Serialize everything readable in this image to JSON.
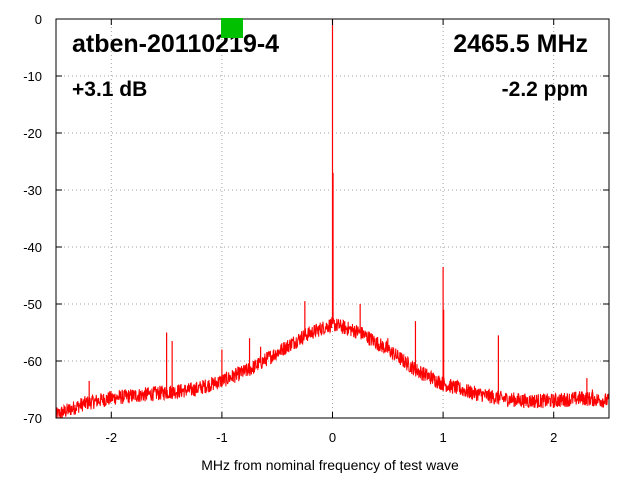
{
  "chart_data": {
    "type": "line",
    "title": "atben-20110219-4",
    "frequency_label": "2465.5 MHz",
    "gain_label": "+3.1 dB",
    "ppm_label": "-2.2 ppm",
    "xlabel": "MHz from nominal frequency of test wave",
    "ylabel": "",
    "xlim": [
      -2.5,
      2.5
    ],
    "ylim": [
      -70,
      0
    ],
    "x_ticks": [
      -2,
      -1,
      0,
      1,
      2
    ],
    "y_ticks": [
      0,
      -10,
      -20,
      -30,
      -40,
      -50,
      -60,
      -70
    ],
    "grid": true,
    "series_color": "#ff0000",
    "indicator_color": "#00c000",
    "noise_floor_envelope": {
      "x": [
        -2.5,
        -2.25,
        -2.0,
        -1.75,
        -1.5,
        -1.25,
        -1.0,
        -0.75,
        -0.5,
        -0.25,
        0.0,
        0.25,
        0.5,
        0.75,
        1.0,
        1.25,
        1.5,
        1.75,
        2.0,
        2.25,
        2.5
      ],
      "y": [
        -69.5,
        -67.5,
        -66.5,
        -66.0,
        -65.5,
        -65.0,
        -63.5,
        -61.5,
        -58.5,
        -55.5,
        -53.5,
        -55.0,
        -58.0,
        -61.5,
        -64.0,
        -65.5,
        -66.5,
        -67.0,
        -67.0,
        -66.5,
        -67.0
      ]
    },
    "spurs": [
      {
        "x": -2.2,
        "y": -63.5
      },
      {
        "x": -1.5,
        "y": -55.0
      },
      {
        "x": -1.45,
        "y": -56.5
      },
      {
        "x": -1.0,
        "y": -58.0
      },
      {
        "x": -0.75,
        "y": -56.0
      },
      {
        "x": -0.65,
        "y": -57.5
      },
      {
        "x": -0.25,
        "y": -49.5
      },
      {
        "x": 0.0,
        "y": 0.0
      },
      {
        "x": 0.005,
        "y": -27.0
      },
      {
        "x": 0.25,
        "y": -50.0
      },
      {
        "x": 0.5,
        "y": -56.0
      },
      {
        "x": 0.75,
        "y": -53.0
      },
      {
        "x": 1.0,
        "y": -43.5
      },
      {
        "x": 1.005,
        "y": -51.0
      },
      {
        "x": 1.5,
        "y": -55.5
      },
      {
        "x": 2.3,
        "y": -63.0
      },
      {
        "x": 2.35,
        "y": -65.0
      }
    ]
  }
}
